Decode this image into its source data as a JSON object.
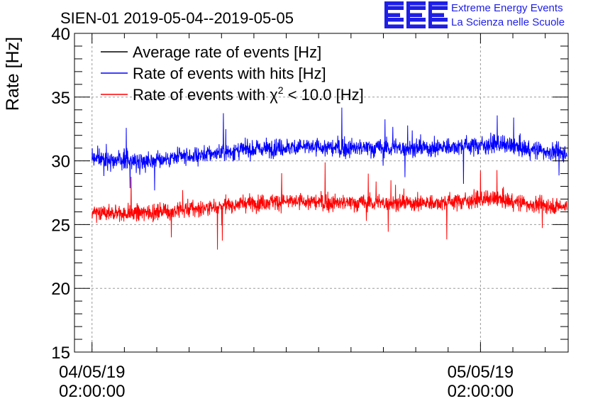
{
  "chart_data": {
    "type": "line",
    "title": "SIEN-01 2019-05-04--2019-05-05",
    "ylabel": "Rate [Hz]",
    "xlabel": "",
    "ylim": [
      15,
      40
    ],
    "y_ticks": [
      "15",
      "20",
      "25",
      "30",
      "35",
      "40"
    ],
    "x_range": [
      "2019-05-04 00:55",
      "2019-05-05 07:25"
    ],
    "x_ticks": [
      {
        "x": "2019-05-04 02:00:00",
        "date_label": "04/05/19",
        "time_label": "02:00:00"
      },
      {
        "x": "2019-05-05 02:00:00",
        "date_label": "05/05/19",
        "time_label": "02:00:00"
      }
    ],
    "grid": true,
    "legend_position": "top-left",
    "legend": [
      {
        "name": "Average rate of events [Hz]",
        "color": "#000000"
      },
      {
        "name": "Rate of events with hits [Hz]",
        "color": "#0000ff"
      },
      {
        "name": "Rate of events with χ² < 10.0 [Hz]",
        "name_prefix": "Rate of events with ",
        "name_symbol": "χ",
        "name_superscript": "2",
        "name_suffix": " < 10.0 [Hz]",
        "color": "#ff0000"
      }
    ],
    "series": [
      {
        "name": "Rate of events with hits [Hz]",
        "color": "#0000ff",
        "x_start": "2019-05-04 02:00",
        "x_end": "2019-05-05 07:20",
        "trend": [
          {
            "x": "2019-05-04 01:45",
            "y": 30.3
          },
          {
            "x": "2019-05-04 03:00",
            "y": 30.1
          },
          {
            "x": "2019-05-04 05:00",
            "y": 30.0
          },
          {
            "x": "2019-05-04 07:00",
            "y": 30.2
          },
          {
            "x": "2019-05-04 09:00",
            "y": 30.5
          },
          {
            "x": "2019-05-04 11:00",
            "y": 30.8
          },
          {
            "x": "2019-05-04 13:00",
            "y": 31.0
          },
          {
            "x": "2019-05-04 15:00",
            "y": 31.1
          },
          {
            "x": "2019-05-04 17:00",
            "y": 31.0
          },
          {
            "x": "2019-05-04 19:00",
            "y": 31.0
          },
          {
            "x": "2019-05-04 21:00",
            "y": 31.0
          },
          {
            "x": "2019-05-04 23:00",
            "y": 31.0
          },
          {
            "x": "2019-05-05 01:00",
            "y": 31.2
          },
          {
            "x": "2019-05-05 03:00",
            "y": 31.3
          },
          {
            "x": "2019-05-05 05:00",
            "y": 30.9
          },
          {
            "x": "2019-05-05 07:20",
            "y": 30.6
          }
        ],
        "spread": 0.6
      },
      {
        "name": "Rate of events with χ² < 10.0 [Hz]",
        "color": "#ff0000",
        "x_start": "2019-05-04 02:00",
        "x_end": "2019-05-05 07:20",
        "trend": [
          {
            "x": "2019-05-04 01:45",
            "y": 26.0
          },
          {
            "x": "2019-05-04 03:00",
            "y": 25.9
          },
          {
            "x": "2019-05-04 05:00",
            "y": 25.9
          },
          {
            "x": "2019-05-04 07:00",
            "y": 26.1
          },
          {
            "x": "2019-05-04 09:00",
            "y": 26.3
          },
          {
            "x": "2019-05-04 11:00",
            "y": 26.6
          },
          {
            "x": "2019-05-04 13:00",
            "y": 26.8
          },
          {
            "x": "2019-05-04 15:00",
            "y": 26.8
          },
          {
            "x": "2019-05-04 17:00",
            "y": 26.7
          },
          {
            "x": "2019-05-04 19:00",
            "y": 26.7
          },
          {
            "x": "2019-05-04 21:00",
            "y": 26.7
          },
          {
            "x": "2019-05-04 23:00",
            "y": 26.7
          },
          {
            "x": "2019-05-05 01:00",
            "y": 26.9
          },
          {
            "x": "2019-05-05 03:00",
            "y": 27.0
          },
          {
            "x": "2019-05-05 05:00",
            "y": 26.6
          },
          {
            "x": "2019-05-05 07:20",
            "y": 26.4
          }
        ],
        "spread": 0.55
      }
    ]
  },
  "logo": {
    "letters": "EEE",
    "line1": "Extreme Energy Events",
    "line2": "La Scienza nelle Scuole",
    "color": "#1e1ee6"
  }
}
